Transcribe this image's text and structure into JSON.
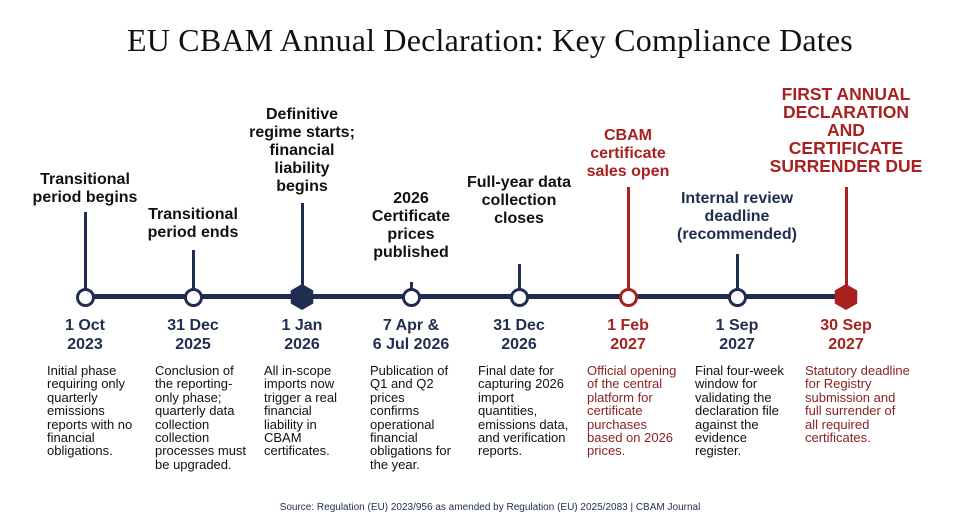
{
  "title": "EU CBAM Annual Declaration: Key Compliance Dates",
  "source": "Source: Regulation (EU) 2023/956 as amended by Regulation (EU) 2025/2083 | CBAM Journal",
  "colors": {
    "navy": "#1f2d50",
    "red": "#a8201f",
    "text": "#111111"
  },
  "milestones": [
    {
      "event": [
        "Transitional",
        "period begins"
      ],
      "date": [
        "1 Oct",
        "2023"
      ],
      "description": [
        "Initial phase",
        "requiring only",
        "quarterly",
        "emissions",
        "reports with no",
        "financial",
        "obligations."
      ],
      "marker": "circle",
      "color": "navy"
    },
    {
      "event": [
        "Transitional",
        "period ends"
      ],
      "date": [
        "31 Dec",
        "2025"
      ],
      "description": [
        "Conclusion of",
        "the reporting-",
        "only phase;",
        "quarterly data",
        "collection",
        "collection",
        "processes must",
        "be upgraded."
      ],
      "marker": "circle",
      "color": "navy"
    },
    {
      "event": [
        "Definitive",
        "regime starts;",
        "financial",
        "liability",
        "begins"
      ],
      "date": [
        "1 Jan",
        "2026"
      ],
      "description": [
        "All in-scope",
        "imports now",
        "trigger a real",
        "financial",
        "liability in",
        "CBAM",
        "certificates."
      ],
      "marker": "hexagon",
      "color": "navy"
    },
    {
      "event": [
        "2026",
        "Certificate",
        "prices",
        "published"
      ],
      "date": [
        "7 Apr &",
        "6 Jul 2026"
      ],
      "description": [
        "Publication of",
        "Q1 and Q2",
        "prices",
        "confirms",
        "operational",
        "financial",
        "obligations for",
        "the year."
      ],
      "marker": "circle",
      "color": "navy"
    },
    {
      "event": [
        "Full-year data",
        "collection",
        "closes"
      ],
      "date": [
        "31 Dec",
        "2026"
      ],
      "description": [
        "Final date for",
        "capturing 2026",
        "import",
        "quantities,",
        "emissions data,",
        "and verification",
        "reports."
      ],
      "marker": "circle",
      "color": "navy"
    },
    {
      "event": [
        "CBAM",
        "certificate",
        "sales open"
      ],
      "date": [
        "1 Feb",
        "2027"
      ],
      "description": [
        "Official opening",
        "of the central",
        "platform for",
        "certificate",
        "purchases",
        "based on 2026",
        "prices."
      ],
      "marker": "circle",
      "color": "red"
    },
    {
      "event": [
        "Internal review",
        "deadline",
        "(recommended)"
      ],
      "date": [
        "1 Sep",
        "2027"
      ],
      "description": [
        "Final four-week",
        "window for",
        "validating the",
        "declaration file",
        "against the",
        "evidence",
        "register."
      ],
      "marker": "circle",
      "color": "navy"
    },
    {
      "event": [
        "FIRST ANNUAL",
        "DECLARATION",
        "AND",
        "CERTIFICATE",
        "SURRENDER DUE"
      ],
      "date": [
        "30 Sep",
        "2027"
      ],
      "description": [
        "Statutory deadline",
        "for Registry",
        "submission and",
        "full surrender of",
        "all required",
        "certificates."
      ],
      "marker": "hexagon",
      "color": "red"
    }
  ]
}
